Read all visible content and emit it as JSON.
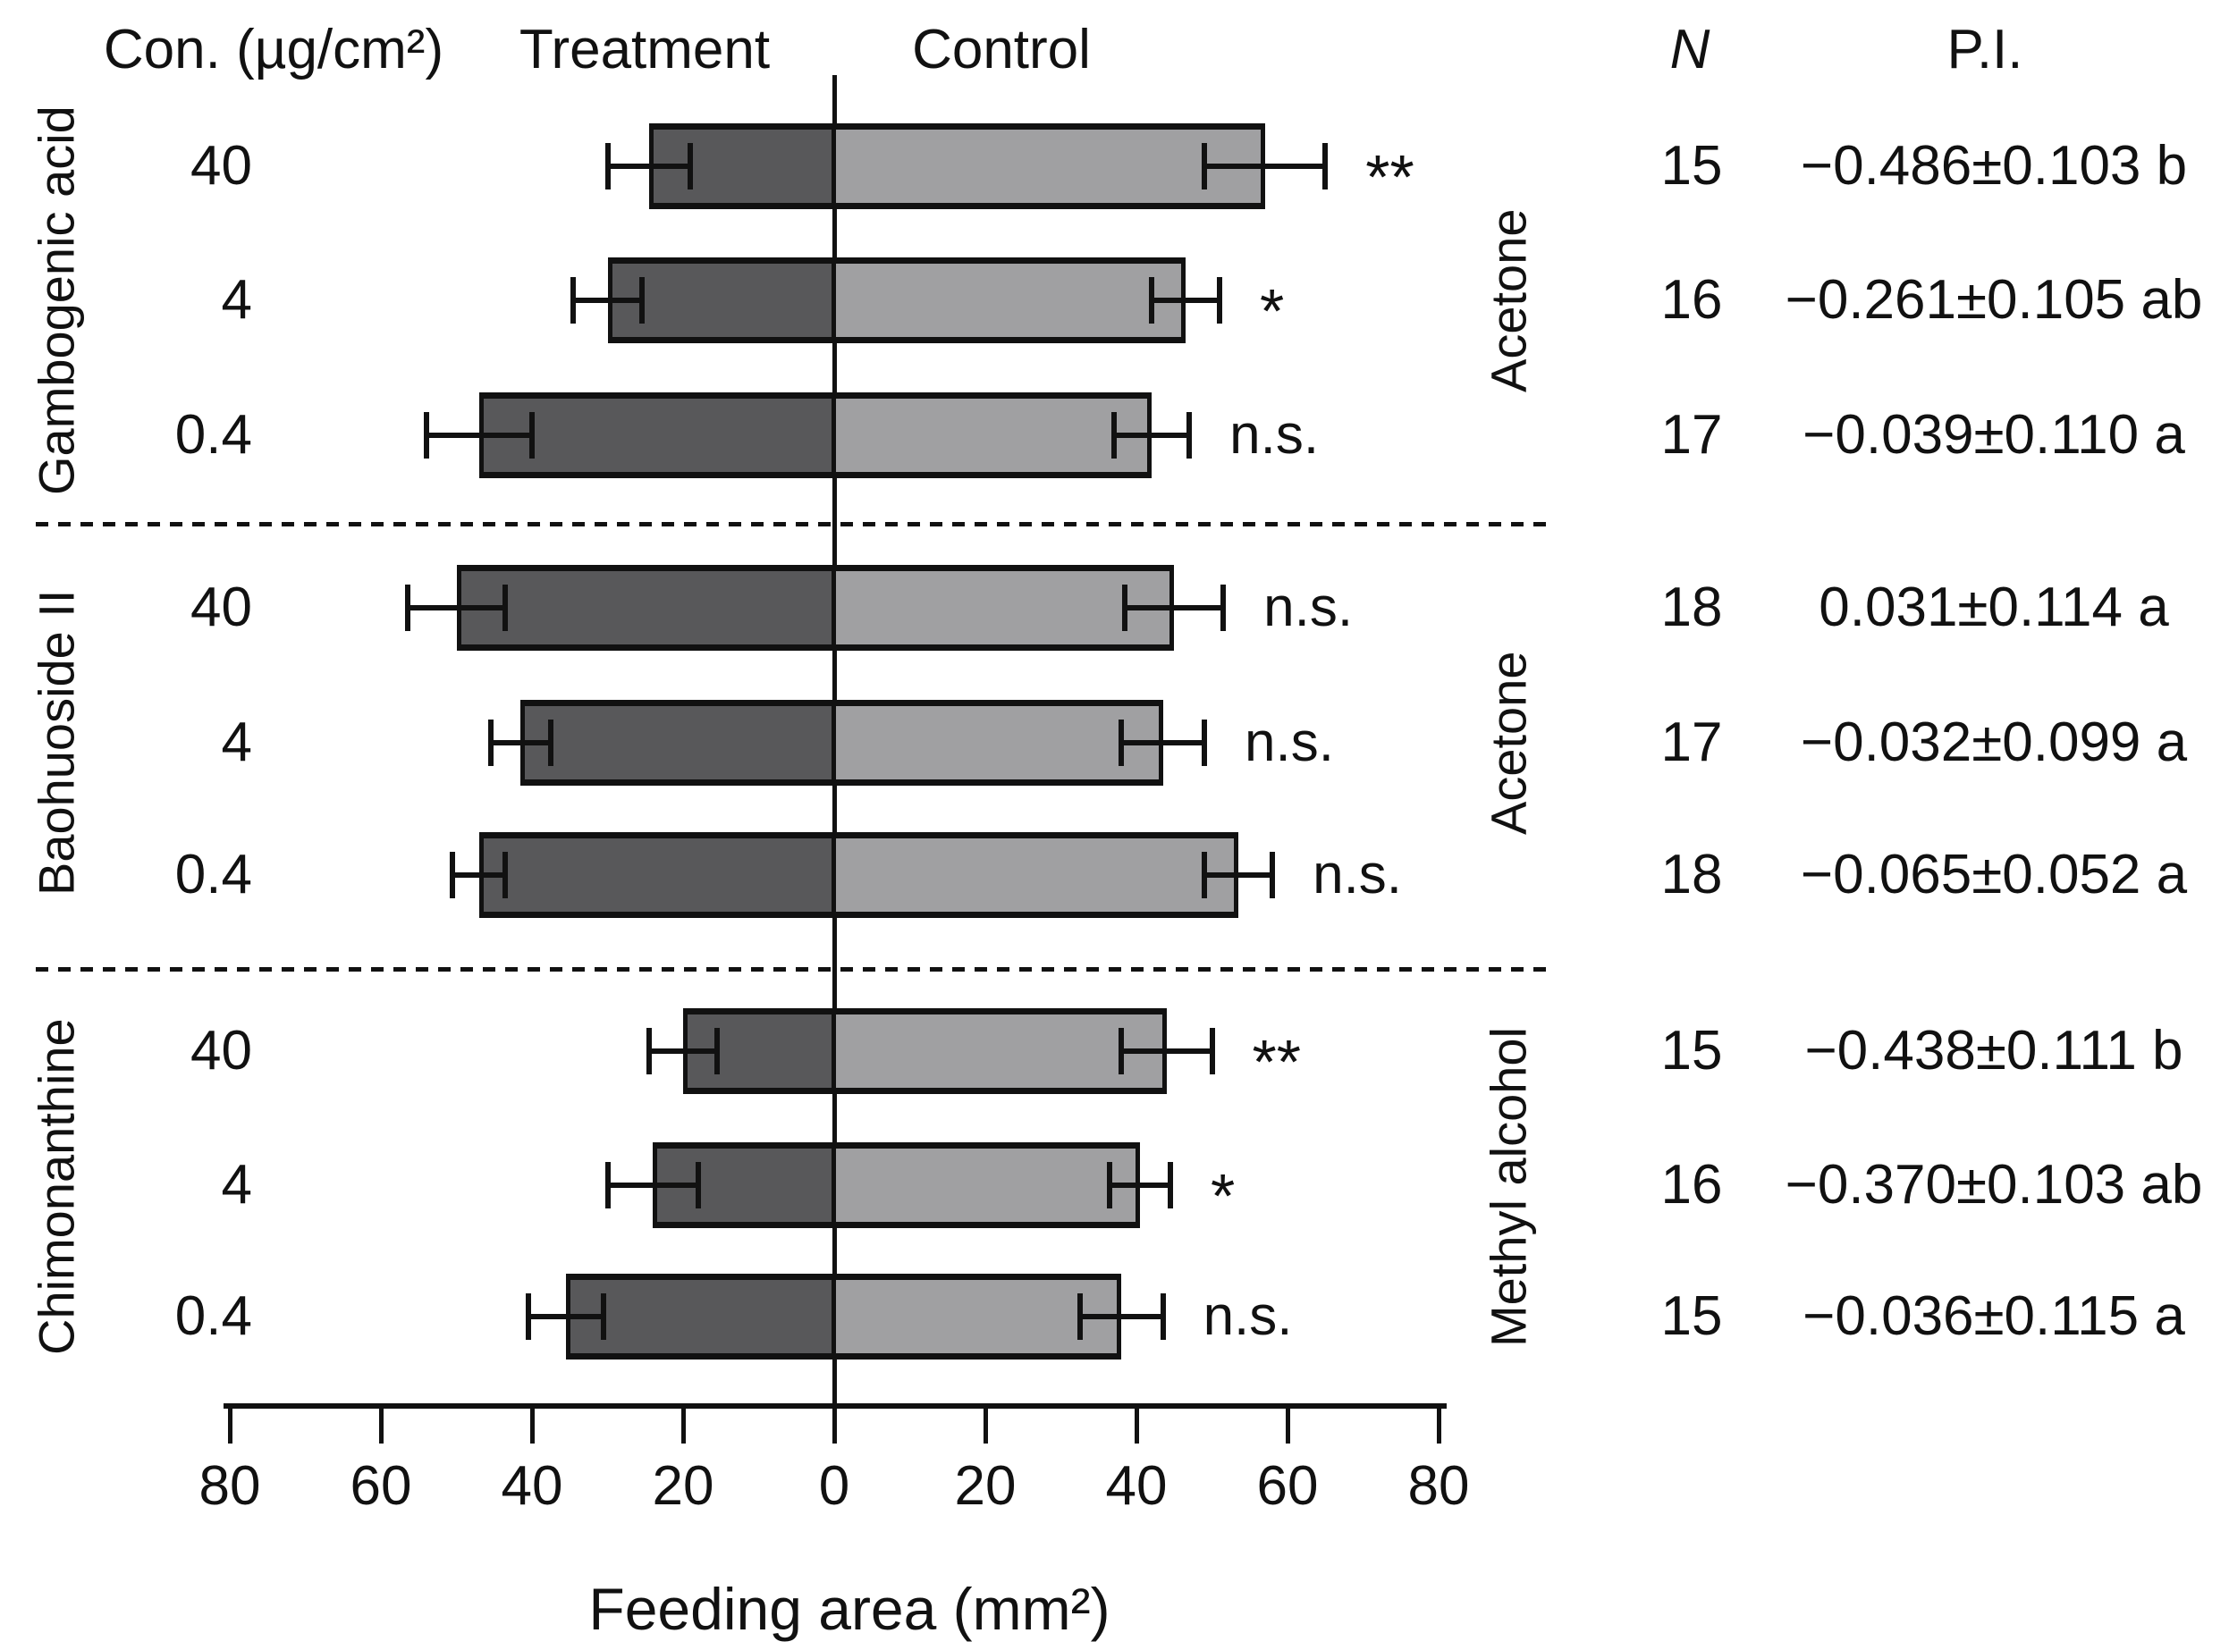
{
  "headers": {
    "con": "Con. (µg/cm²)",
    "treatment": "Treatment",
    "control": "Control",
    "n": "N",
    "pi": "P.I."
  },
  "chart_data": {
    "type": "bar",
    "orientation": "horizontal-diverging",
    "xlabel": "Feeding area (mm²)",
    "x_ticks": [
      "80",
      "60",
      "40",
      "20",
      "0",
      "20",
      "40",
      "60",
      "80"
    ],
    "x_tick_offsets": [
      -80,
      -60,
      -40,
      -20,
      0,
      20,
      40,
      60,
      80
    ],
    "axis_max": 80,
    "legend": {
      "left_series": "Treatment",
      "right_series": "Control"
    },
    "colors": {
      "treatment_fill": "#58585a",
      "control_fill": "#a0a0a2",
      "outline": "#111111"
    },
    "groups": [
      {
        "compound": "Gambogenic acid",
        "solvent": "Acetone",
        "rows": [
          {
            "con": "40",
            "treatment": 24.5,
            "treatment_err": 5.5,
            "control": 57,
            "control_err": 8,
            "sig": "**",
            "n": "15",
            "pi": "−0.486±0.103 b"
          },
          {
            "con": "4",
            "treatment": 30,
            "treatment_err": 4.5,
            "control": 46.5,
            "control_err": 4.5,
            "sig": "*",
            "n": "16",
            "pi": "−0.261±0.105 ab"
          },
          {
            "con": "0.4",
            "treatment": 47,
            "treatment_err": 7,
            "control": 42,
            "control_err": 5,
            "sig": "n.s.",
            "n": "17",
            "pi": "−0.039±0.110 a"
          }
        ]
      },
      {
        "compound": "Baohuoside II",
        "solvent": "Acetone",
        "rows": [
          {
            "con": "40",
            "treatment": 50,
            "treatment_err": 6.5,
            "control": 45,
            "control_err": 6.5,
            "sig": "n.s.",
            "n": "18",
            "pi": "0.031±0.114 a"
          },
          {
            "con": "4",
            "treatment": 41.5,
            "treatment_err": 4,
            "control": 43.5,
            "control_err": 5.5,
            "sig": "n.s.",
            "n": "17",
            "pi": "−0.032±0.099 a"
          },
          {
            "con": "0.4",
            "treatment": 47,
            "treatment_err": 3.5,
            "control": 53.5,
            "control_err": 4.5,
            "sig": "n.s.",
            "n": "18",
            "pi": "−0.065±0.052 a"
          }
        ]
      },
      {
        "compound": "Chimonanthine",
        "solvent": "Methyl alcohol",
        "rows": [
          {
            "con": "40",
            "treatment": 20,
            "treatment_err": 4.5,
            "control": 44,
            "control_err": 6,
            "sig": "**",
            "n": "15",
            "pi": "−0.438±0.111 b"
          },
          {
            "con": "4",
            "treatment": 24,
            "treatment_err": 6,
            "control": 40.5,
            "control_err": 4,
            "sig": "*",
            "n": "16",
            "pi": "−0.370±0.103 ab"
          },
          {
            "con": "0.4",
            "treatment": 35.5,
            "treatment_err": 5,
            "control": 38,
            "control_err": 5.5,
            "sig": "n.s.",
            "n": "15",
            "pi": "−0.036±0.115 a"
          }
        ]
      }
    ]
  }
}
